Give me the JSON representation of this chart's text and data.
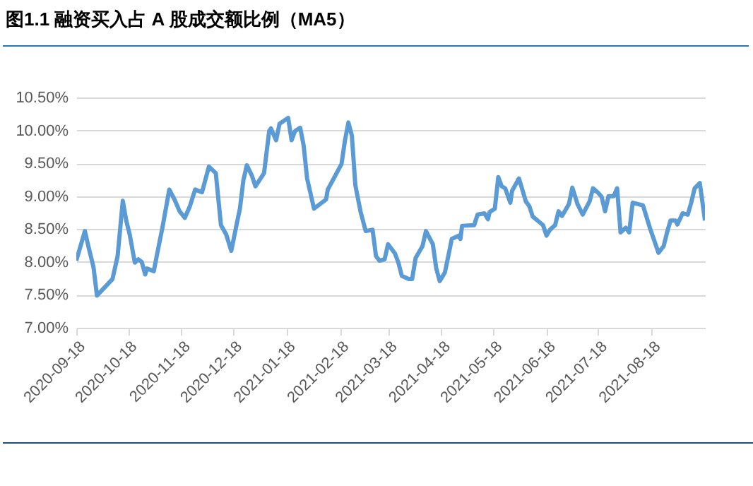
{
  "chart_data": {
    "type": "line",
    "title": "图1.1  融资买入占 A 股成交额比例（MA5）",
    "x": [
      "2020-09-18",
      "2020-09-23",
      "2020-09-25",
      "2020-09-28",
      "2020-09-30",
      "2020-10-09",
      "2020-10-12",
      "2020-10-15",
      "2020-10-17",
      "2020-10-19",
      "2020-10-21",
      "2020-10-22",
      "2020-10-24",
      "2020-10-26",
      "2020-10-28",
      "2020-10-29",
      "2020-11-02",
      "2020-11-04",
      "2020-11-07",
      "2020-11-11",
      "2020-11-14",
      "2020-11-17",
      "2020-11-20",
      "2020-11-23",
      "2020-11-26",
      "2020-11-30",
      "2020-12-04",
      "2020-12-08",
      "2020-12-11",
      "2020-12-14",
      "2020-12-17",
      "2020-12-20",
      "2020-12-22",
      "2020-12-24",
      "2020-12-26",
      "2020-12-29",
      "2020-12-31",
      "2021-01-05",
      "2021-01-08",
      "2021-01-09",
      "2021-01-12",
      "2021-01-14",
      "2021-01-19",
      "2021-01-21",
      "2021-01-23",
      "2021-01-26",
      "2021-01-28",
      "2021-01-30",
      "2021-02-03",
      "2021-02-05",
      "2021-02-10",
      "2021-02-11",
      "2021-02-19",
      "2021-02-21",
      "2021-02-23",
      "2021-02-25",
      "2021-02-27",
      "2021-03-02",
      "2021-03-05",
      "2021-03-09",
      "2021-03-11",
      "2021-03-13",
      "2021-03-16",
      "2021-03-18",
      "2021-03-22",
      "2021-03-24",
      "2021-03-26",
      "2021-03-30",
      "2021-04-01",
      "2021-04-03",
      "2021-04-07",
      "2021-04-09",
      "2021-04-13",
      "2021-04-15",
      "2021-04-17",
      "2021-04-20",
      "2021-04-22",
      "2021-04-24",
      "2021-04-28",
      "2021-04-29",
      "2021-04-30",
      "2021-05-07",
      "2021-05-09",
      "2021-05-13",
      "2021-05-15",
      "2021-05-16",
      "2021-05-19",
      "2021-05-21",
      "2021-05-23",
      "2021-05-25",
      "2021-05-28",
      "2021-05-29",
      "2021-06-02",
      "2021-06-06",
      "2021-06-08",
      "2021-06-10",
      "2021-06-16",
      "2021-06-18",
      "2021-06-20",
      "2021-06-23",
      "2021-06-25",
      "2021-06-27",
      "2021-07-01",
      "2021-07-03",
      "2021-07-06",
      "2021-07-09",
      "2021-07-13",
      "2021-07-15",
      "2021-07-18",
      "2021-07-20",
      "2021-07-22",
      "2021-07-24",
      "2021-07-27",
      "2021-07-29",
      "2021-07-31",
      "2021-08-03",
      "2021-08-05",
      "2021-08-07",
      "2021-08-10",
      "2021-08-13",
      "2021-08-17",
      "2021-08-22",
      "2021-08-25",
      "2021-08-27",
      "2021-08-29",
      "2021-09-01",
      "2021-09-02",
      "2021-09-05",
      "2021-09-08",
      "2021-09-10",
      "2021-09-12",
      "2021-09-15",
      "2021-09-18"
    ],
    "series": [
      {
        "color": "#5b9bd5",
        "values": [
          8.02,
          8.47,
          8.24,
          7.92,
          7.49,
          7.74,
          8.09,
          8.93,
          8.63,
          8.42,
          8.13,
          7.99,
          8.04,
          8.0,
          7.81,
          7.9,
          7.86,
          8.13,
          8.52,
          9.1,
          8.95,
          8.77,
          8.67,
          8.85,
          9.1,
          9.06,
          9.45,
          9.35,
          8.56,
          8.42,
          8.17,
          8.56,
          8.81,
          9.24,
          9.47,
          9.31,
          9.15,
          9.35,
          9.99,
          10.03,
          9.85,
          10.1,
          10.19,
          9.85,
          9.99,
          10.04,
          9.77,
          9.27,
          8.81,
          8.85,
          8.95,
          9.1,
          9.49,
          9.85,
          10.12,
          9.92,
          9.17,
          8.77,
          8.47,
          8.49,
          8.09,
          8.02,
          8.04,
          8.27,
          8.13,
          7.99,
          7.79,
          7.74,
          7.74,
          8.06,
          8.24,
          8.47,
          8.27,
          7.9,
          7.71,
          7.84,
          8.09,
          8.35,
          8.4,
          8.35,
          8.55,
          8.56,
          8.72,
          8.74,
          8.65,
          8.76,
          8.81,
          9.29,
          9.15,
          9.12,
          8.9,
          9.08,
          9.27,
          8.92,
          8.85,
          8.69,
          8.56,
          8.4,
          8.49,
          8.56,
          8.77,
          8.7,
          8.88,
          9.13,
          8.88,
          8.72,
          8.92,
          9.12,
          9.05,
          8.99,
          8.77,
          9.0,
          9.0,
          9.12,
          8.45,
          8.52,
          8.45,
          8.9,
          8.88,
          8.86,
          8.52,
          8.14,
          8.24,
          8.45,
          8.63,
          8.63,
          8.57,
          8.74,
          8.72,
          8.9,
          9.12,
          9.2,
          8.63
        ]
      }
    ],
    "xlim": [
      "2020-09-18",
      "2021-09-18"
    ],
    "xticks": [
      "2020-09-18",
      "2020-10-18",
      "2020-11-18",
      "2020-12-18",
      "2021-01-18",
      "2021-02-18",
      "2021-03-18",
      "2021-04-18",
      "2021-05-18",
      "2021-06-18",
      "2021-07-18",
      "2021-08-18"
    ],
    "ylim": [
      7,
      10.5
    ],
    "yticks": [
      {
        "value": 7,
        "label": "7.00%"
      },
      {
        "value": 7.5,
        "label": "7.50%"
      },
      {
        "value": 8,
        "label": "8.00%"
      },
      {
        "value": 8.5,
        "label": "8.50%"
      },
      {
        "value": 9,
        "label": "9.00%"
      },
      {
        "value": 9.5,
        "label": "9.50%"
      },
      {
        "value": 10,
        "label": "10.00%"
      },
      {
        "value": 10.5,
        "label": "10.50%"
      }
    ],
    "grid": "y",
    "line_style": "solid"
  }
}
